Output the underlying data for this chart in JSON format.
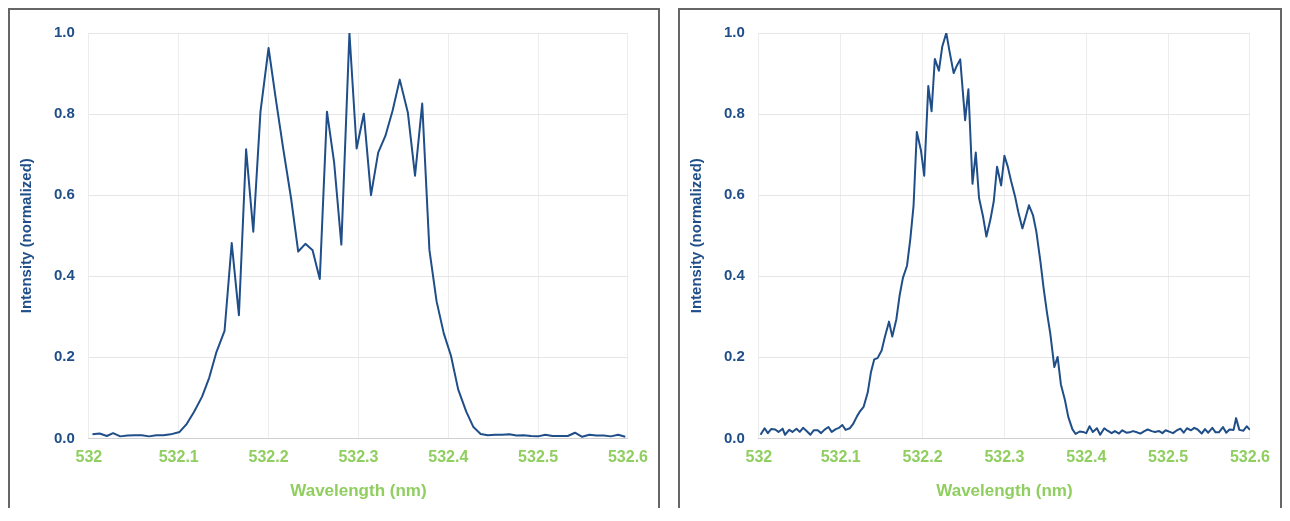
{
  "chart_data": [
    {
      "type": "line",
      "xlabel": "Wavelength (nm)",
      "ylabel": "Intensity (normalized)",
      "xlim": [
        532,
        532.6
      ],
      "xticks": [
        532,
        532.1,
        532.2,
        532.3,
        532.4,
        532.5,
        532.6
      ],
      "ylim": [
        0,
        1
      ],
      "yticks": [
        {
          "value": 0,
          "label": "0.0"
        },
        {
          "value": 0.2,
          "label": "0.2"
        },
        {
          "value": 0.4,
          "label": "0.4"
        },
        {
          "value": 0.6,
          "label": "0.6"
        },
        {
          "value": 0.8,
          "label": "0.8"
        },
        {
          "value": 1,
          "label": "1.0"
        }
      ],
      "grid": true,
      "legend": false,
      "marker": "none",
      "line_style": "solid",
      "series": [
        {
          "color": "#1f4e89",
          "x": [
            532.004,
            532.012,
            532.02,
            532.027,
            532.035,
            532.043,
            532.051,
            532.059,
            532.067,
            532.075,
            532.083,
            532.091,
            532.101,
            532.109,
            532.117,
            532.126,
            532.134,
            532.142,
            532.151,
            532.159,
            532.167,
            532.175,
            532.183,
            532.191,
            532.2,
            532.208,
            532.216,
            532.225,
            532.233,
            532.241,
            532.249,
            532.257,
            532.265,
            532.273,
            532.281,
            532.29,
            532.298,
            532.306,
            532.314,
            532.322,
            532.33,
            532.338,
            532.346,
            532.355,
            532.363,
            532.371,
            532.379,
            532.387,
            532.395,
            532.403,
            532.411,
            532.42,
            532.428,
            532.436,
            532.444,
            532.452,
            532.46,
            532.468,
            532.476,
            532.484,
            532.492,
            532.5,
            532.508,
            532.516,
            532.524,
            532.533,
            532.541,
            532.549,
            532.557,
            532.565,
            532.573,
            532.581,
            532.589,
            532.597
          ],
          "values": [
            0.01,
            0.012,
            0.006,
            0.013,
            0.005,
            0.007,
            0.008,
            0.008,
            0.005,
            0.008,
            0.008,
            0.01,
            0.016,
            0.036,
            0.065,
            0.103,
            0.15,
            0.213,
            0.265,
            0.482,
            0.304,
            0.713,
            0.51,
            0.806,
            0.963,
            0.838,
            0.719,
            0.593,
            0.461,
            0.48,
            0.464,
            0.393,
            0.806,
            0.68,
            0.478,
            1.0,
            0.715,
            0.801,
            0.6,
            0.705,
            0.746,
            0.808,
            0.885,
            0.804,
            0.648,
            0.826,
            0.465,
            0.338,
            0.259,
            0.204,
            0.121,
            0.066,
            0.028,
            0.011,
            0.008,
            0.009,
            0.009,
            0.01,
            0.007,
            0.008,
            0.006,
            0.005,
            0.009,
            0.006,
            0.006,
            0.006,
            0.014,
            0.004,
            0.009,
            0.007,
            0.007,
            0.005,
            0.009,
            0.004
          ]
        }
      ]
    },
    {
      "type": "line",
      "xlabel": "Wavelength (nm)",
      "ylabel": "Intensity (normalized)",
      "xlim": [
        532,
        532.6
      ],
      "xticks": [
        532,
        532.1,
        532.2,
        532.3,
        532.4,
        532.5,
        532.6
      ],
      "ylim": [
        0,
        1
      ],
      "yticks": [
        {
          "value": 0,
          "label": "0.0"
        },
        {
          "value": 0.2,
          "label": "0.2"
        },
        {
          "value": 0.4,
          "label": "0.4"
        },
        {
          "value": 0.6,
          "label": "0.6"
        },
        {
          "value": 0.8,
          "label": "0.8"
        },
        {
          "value": 1,
          "label": "1.0"
        }
      ],
      "grid": true,
      "legend": false,
      "marker": "none",
      "line_style": "solid",
      "series": [
        {
          "color": "#1f4e89",
          "x": [
            532.002,
            532.007,
            532.011,
            532.015,
            532.02,
            532.024,
            532.029,
            532.032,
            532.037,
            532.041,
            532.046,
            532.05,
            532.054,
            532.058,
            532.063,
            532.067,
            532.072,
            532.076,
            532.08,
            532.085,
            532.089,
            532.094,
            532.098,
            532.102,
            532.106,
            532.111,
            532.115,
            532.12,
            532.124,
            532.128,
            532.133,
            532.137,
            532.141,
            532.145,
            532.15,
            532.154,
            532.159,
            532.163,
            532.168,
            532.172,
            532.176,
            532.181,
            532.185,
            532.189,
            532.193,
            532.198,
            532.202,
            532.207,
            532.211,
            532.215,
            532.22,
            532.224,
            532.229,
            532.233,
            532.238,
            532.242,
            532.246,
            532.252,
            532.256,
            532.261,
            532.265,
            532.269,
            532.274,
            532.278,
            532.283,
            532.287,
            532.291,
            532.296,
            532.3,
            532.304,
            532.308,
            532.313,
            532.317,
            532.322,
            532.326,
            532.33,
            532.335,
            532.339,
            532.344,
            532.348,
            532.352,
            532.356,
            532.361,
            532.365,
            532.369,
            532.374,
            532.378,
            532.383,
            532.387,
            532.392,
            532.396,
            532.4,
            532.404,
            532.408,
            532.413,
            532.417,
            532.422,
            532.426,
            532.431,
            532.435,
            532.44,
            532.444,
            532.449,
            532.453,
            532.457,
            532.462,
            532.466,
            532.471,
            532.475,
            532.48,
            532.484,
            532.489,
            532.493,
            532.497,
            532.502,
            532.506,
            532.51,
            532.515,
            532.519,
            532.523,
            532.528,
            532.532,
            532.536,
            532.541,
            532.545,
            532.549,
            532.554,
            532.558,
            532.562,
            532.567,
            532.571,
            532.575,
            532.58,
            532.583,
            532.587,
            532.592,
            532.596,
            532.6
          ],
          "values": [
            0.009,
            0.025,
            0.013,
            0.023,
            0.022,
            0.016,
            0.024,
            0.009,
            0.021,
            0.016,
            0.024,
            0.016,
            0.026,
            0.019,
            0.009,
            0.02,
            0.02,
            0.013,
            0.021,
            0.028,
            0.016,
            0.023,
            0.026,
            0.033,
            0.021,
            0.025,
            0.035,
            0.055,
            0.068,
            0.078,
            0.113,
            0.164,
            0.195,
            0.198,
            0.217,
            0.251,
            0.288,
            0.251,
            0.294,
            0.353,
            0.396,
            0.426,
            0.491,
            0.574,
            0.756,
            0.711,
            0.648,
            0.869,
            0.807,
            0.936,
            0.907,
            0.966,
            1.0,
            0.954,
            0.901,
            0.92,
            0.935,
            0.785,
            0.861,
            0.628,
            0.705,
            0.593,
            0.546,
            0.498,
            0.541,
            0.585,
            0.67,
            0.624,
            0.697,
            0.671,
            0.636,
            0.597,
            0.558,
            0.518,
            0.546,
            0.575,
            0.55,
            0.51,
            0.436,
            0.369,
            0.31,
            0.259,
            0.176,
            0.201,
            0.133,
            0.094,
            0.053,
            0.023,
            0.011,
            0.017,
            0.016,
            0.013,
            0.03,
            0.016,
            0.025,
            0.009,
            0.025,
            0.019,
            0.013,
            0.018,
            0.012,
            0.02,
            0.014,
            0.015,
            0.018,
            0.015,
            0.012,
            0.018,
            0.022,
            0.018,
            0.016,
            0.018,
            0.013,
            0.02,
            0.016,
            0.013,
            0.019,
            0.024,
            0.014,
            0.025,
            0.02,
            0.026,
            0.022,
            0.012,
            0.023,
            0.014,
            0.026,
            0.015,
            0.015,
            0.028,
            0.014,
            0.022,
            0.021,
            0.05,
            0.021,
            0.019,
            0.03,
            0.021
          ]
        }
      ]
    }
  ]
}
